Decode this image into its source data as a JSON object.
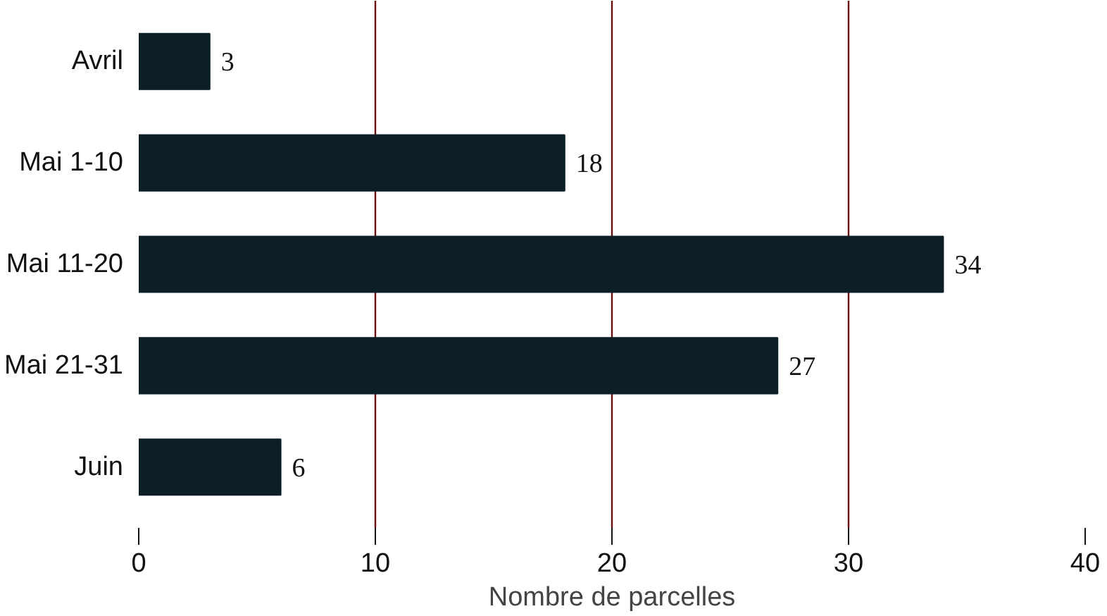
{
  "chart_data": {
    "type": "bar",
    "orientation": "horizontal",
    "xlabel": "Nombre de parcelles",
    "categories": [
      "Avril",
      "Mai 1-10",
      "Mai 11-20",
      "Mai 21-31",
      "Juin"
    ],
    "values": [
      3,
      18,
      34,
      27,
      6
    ],
    "color": "#0d1f26",
    "xlim": [
      0,
      40
    ],
    "xticks": [
      0,
      10,
      20,
      30,
      40
    ],
    "grid": "x",
    "data_labels": true
  }
}
